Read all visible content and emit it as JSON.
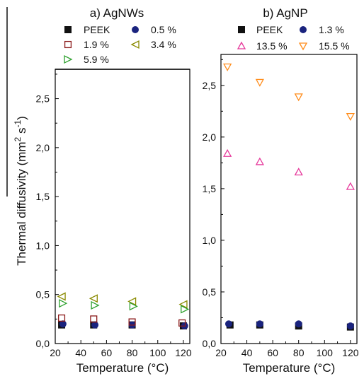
{
  "chart_data": [
    {
      "type": "scatter",
      "title": "a) AgNWs",
      "xlabel": "Temperature (°C)",
      "ylabel": "Thermal diffusivity  (mm² s⁻¹)",
      "xlim": [
        20,
        125
      ],
      "ylim": [
        0,
        2.8
      ],
      "xticks": [
        "20",
        "40",
        "60",
        "80",
        "100",
        "120"
      ],
      "yticks": [
        "0,0",
        "0,5",
        "1,0",
        "1,5",
        "2,0",
        "2,5"
      ],
      "legend_placement": "top",
      "series": [
        {
          "name": "PEEK",
          "marker": "square-filled",
          "color": "#111111",
          "x": [
            25,
            50,
            80,
            120
          ],
          "y": [
            0.19,
            0.19,
            0.19,
            0.18
          ]
        },
        {
          "name": "0.5 %",
          "marker": "circle-filled",
          "color": "#1a237e",
          "x": [
            26,
            51,
            80,
            121
          ],
          "y": [
            0.2,
            0.19,
            0.19,
            0.18
          ]
        },
        {
          "name": "1.9 %",
          "marker": "square-open",
          "color": "#8b1a1a",
          "x": [
            25,
            50,
            80,
            119
          ],
          "y": [
            0.26,
            0.25,
            0.22,
            0.21
          ]
        },
        {
          "name": "3.4 %",
          "marker": "triangle-left",
          "color": "#8a8a00",
          "x": [
            25,
            50,
            80,
            120
          ],
          "y": [
            0.48,
            0.46,
            0.43,
            0.4
          ]
        },
        {
          "name": "5.9 %",
          "marker": "triangle-right",
          "color": "#2ca02c",
          "x": [
            26,
            51,
            81,
            121
          ],
          "y": [
            0.41,
            0.39,
            0.38,
            0.35
          ]
        }
      ]
    },
    {
      "type": "scatter",
      "title": "b) AgNP",
      "xlabel": "Temperature (°C)",
      "ylabel": "",
      "xlim": [
        20,
        125
      ],
      "ylim": [
        0,
        2.8
      ],
      "xticks": [
        "20",
        "40",
        "60",
        "80",
        "100",
        "120"
      ],
      "yticks": [
        "0,0",
        "0,5",
        "1,0",
        "1,5",
        "2,0",
        "2,5"
      ],
      "legend_placement": "top",
      "series": [
        {
          "name": "PEEK",
          "marker": "square-filled",
          "color": "#111111",
          "x": [
            27,
            50,
            80,
            120
          ],
          "y": [
            0.18,
            0.18,
            0.17,
            0.16
          ]
        },
        {
          "name": "1.3 %",
          "marker": "circle-filled",
          "color": "#1a237e",
          "x": [
            26,
            50,
            80,
            120
          ],
          "y": [
            0.19,
            0.19,
            0.19,
            0.17
          ]
        },
        {
          "name": "13.5 %",
          "marker": "triangle-up",
          "color": "#e6399b",
          "x": [
            25,
            50,
            80,
            120
          ],
          "y": [
            1.84,
            1.76,
            1.66,
            1.52
          ]
        },
        {
          "name": "15.5 %",
          "marker": "triangle-down",
          "color": "#ff8c1a",
          "x": [
            25,
            50,
            80,
            120
          ],
          "y": [
            2.68,
            2.53,
            2.39,
            2.2
          ]
        }
      ]
    }
  ]
}
